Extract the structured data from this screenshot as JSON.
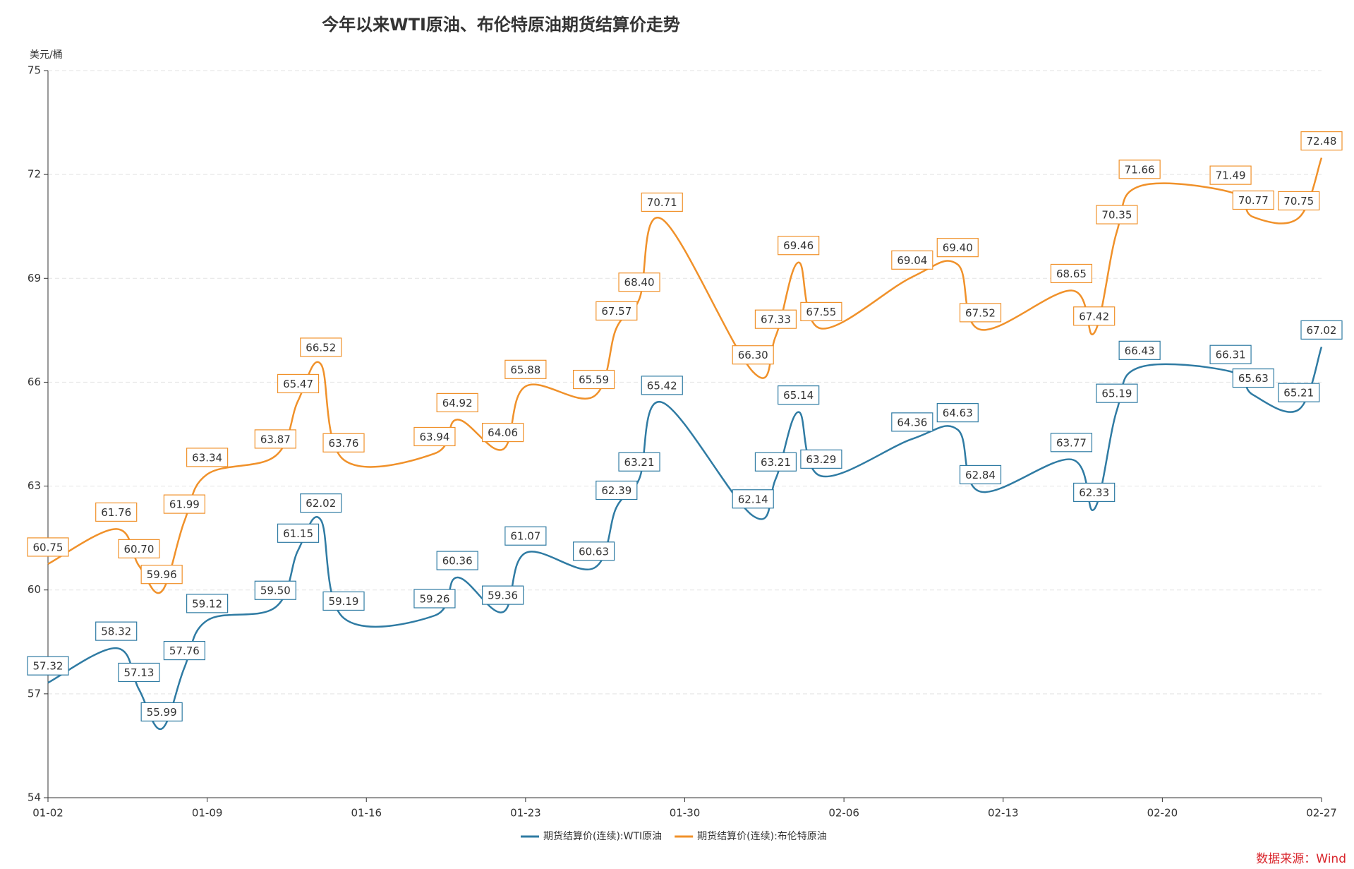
{
  "chart_data": {
    "type": "line",
    "title": "今年以来WTI原油、布伦特原油期货结算价走势",
    "ylabel": "美元/桶",
    "source": "数据来源：Wind",
    "x": [
      "01-02",
      "01-05",
      "01-06",
      "01-07",
      "01-08",
      "01-09",
      "01-12",
      "01-13",
      "01-14",
      "01-15",
      "01-19",
      "01-20",
      "01-22",
      "01-23",
      "01-26",
      "01-27",
      "01-28",
      "01-29",
      "02-02",
      "02-03",
      "02-04",
      "02-05",
      "02-09",
      "02-11",
      "02-12",
      "02-16",
      "02-17",
      "02-18",
      "02-19",
      "02-23",
      "02-24",
      "02-26",
      "02-27"
    ],
    "xlim": [
      "01-02",
      "02-27"
    ],
    "xticks": [
      "01-02",
      "01-09",
      "01-16",
      "01-23",
      "01-30",
      "02-06",
      "02-13",
      "02-20",
      "02-27"
    ],
    "ylim": [
      54,
      75
    ],
    "yticks": [
      54,
      57,
      60,
      63,
      66,
      69,
      72,
      75
    ],
    "grid": true,
    "smooth": true,
    "legend": "bottom",
    "series": [
      {
        "name": "期货结算价(连续):WTI原油",
        "color": "#2f7ba3",
        "values": [
          57.32,
          58.32,
          57.13,
          55.99,
          57.76,
          59.12,
          59.5,
          61.15,
          62.02,
          59.19,
          59.26,
          60.36,
          59.36,
          61.07,
          60.63,
          62.39,
          63.21,
          65.42,
          62.14,
          63.21,
          65.14,
          63.29,
          64.36,
          64.63,
          62.84,
          63.77,
          62.33,
          65.19,
          66.43,
          66.31,
          65.63,
          65.21,
          67.02
        ],
        "value_labels": [
          "57.32",
          "58.32",
          "57.13",
          "55.99",
          "57.76",
          "59.12",
          "59.50",
          "61.15",
          "62.02",
          "59.19",
          "59.26",
          "60.36",
          "59.36",
          "61.07",
          "60.63",
          "62.39",
          "63.21",
          "65.42",
          "62.14",
          "63.21",
          "65.14",
          "63.29",
          "64.36",
          "64.63",
          "62.84",
          "63.77",
          "62.33",
          "65.19",
          "66.43",
          "66.31",
          "65.63",
          "65.21",
          "67.02"
        ]
      },
      {
        "name": "期货结算价(连续):布伦特原油",
        "color": "#f0912a",
        "values": [
          60.75,
          61.76,
          60.7,
          59.96,
          61.99,
          63.34,
          63.87,
          65.47,
          66.52,
          63.76,
          63.94,
          64.92,
          64.06,
          65.88,
          65.59,
          67.57,
          68.4,
          70.71,
          66.3,
          67.33,
          69.46,
          67.55,
          69.04,
          69.4,
          67.52,
          68.65,
          67.42,
          70.35,
          71.66,
          71.49,
          70.77,
          70.75,
          72.48
        ],
        "value_labels": [
          "60.75",
          "61.76",
          "60.70",
          "59.96",
          "61.99",
          "63.34",
          "63.87",
          "65.47",
          "66.52",
          "63.76",
          "63.94",
          "64.92",
          "64.06",
          "65.88",
          "65.59",
          "67.57",
          "68.40",
          "70.71",
          "66.30",
          "67.33",
          "69.46",
          "67.55",
          "69.04",
          "69.40",
          "67.52",
          "68.65",
          "67.42",
          "70.35",
          "71.66",
          "71.49",
          "70.77",
          "70.75",
          "72.48"
        ]
      }
    ]
  }
}
